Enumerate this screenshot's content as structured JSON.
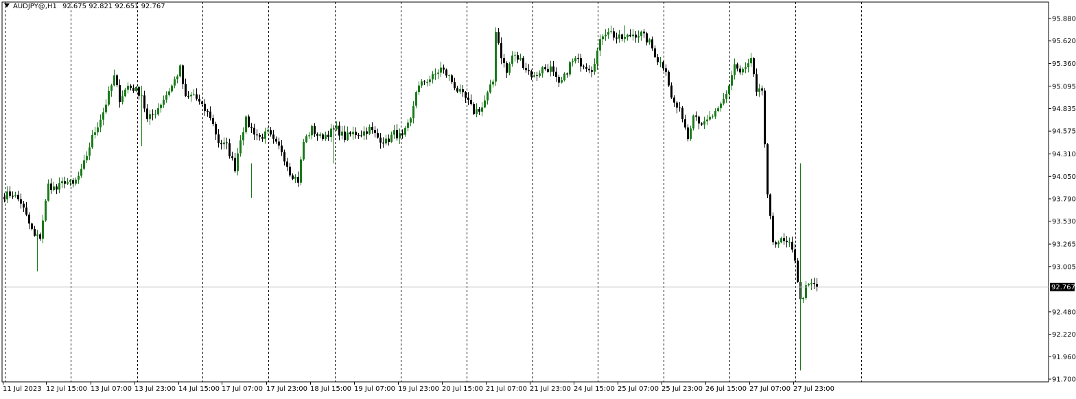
{
  "symbol": {
    "name": "AUDJPY@",
    "timeframe": "H1",
    "open": "92.675",
    "high": "92.821",
    "low": "92.651",
    "close": "92.767"
  },
  "current_price_label": "92.767",
  "colors": {
    "bull": "#1a7a1a",
    "bear": "#000000",
    "grid": "#000000",
    "price_line": "#c0c0c0",
    "background": "#ffffff"
  },
  "chart_data": {
    "type": "candlestick",
    "ylim": [
      91.7,
      95.95
    ],
    "y_ticks": [
      "95.880",
      "95.620",
      "95.360",
      "95.095",
      "94.835",
      "94.575",
      "94.310",
      "94.050",
      "93.790",
      "93.530",
      "93.265",
      "93.005",
      "92.767",
      "92.480",
      "92.220",
      "91.960",
      "91.700"
    ],
    "x_ticks": [
      "11 Jul 2023",
      "12 Jul 15:00",
      "13 Jul 07:00",
      "13 Jul 23:00",
      "14 Jul 15:00",
      "17 Jul 07:00",
      "17 Jul 23:00",
      "18 Jul 15:00",
      "19 Jul 07:00",
      "19 Jul 23:00",
      "20 Jul 15:00",
      "21 Jul 07:00",
      "21 Jul 23:00",
      "24 Jul 15:00",
      "25 Jul 07:00",
      "25 Jul 23:00",
      "26 Jul 15:00",
      "27 Jul 07:00",
      "27 Jul 23:00"
    ],
    "grid": "vertical dashed at session separators",
    "last_price": 92.767,
    "close_path": [
      [
        0,
        93.83
      ],
      [
        3,
        93.85
      ],
      [
        6,
        93.75
      ],
      [
        9,
        93.5
      ],
      [
        11,
        93.35
      ],
      [
        13,
        93.35
      ],
      [
        16,
        93.95
      ],
      [
        19,
        93.9
      ],
      [
        22,
        94.0
      ],
      [
        25,
        93.95
      ],
      [
        28,
        94.1
      ],
      [
        32,
        94.5
      ],
      [
        36,
        94.8
      ],
      [
        40,
        95.2
      ],
      [
        42,
        94.95
      ],
      [
        45,
        95.1
      ],
      [
        48,
        95.05
      ],
      [
        50,
        95.0
      ],
      [
        52,
        94.7
      ],
      [
        55,
        94.8
      ],
      [
        58,
        94.95
      ],
      [
        61,
        95.1
      ],
      [
        64,
        95.3
      ],
      [
        66,
        94.95
      ],
      [
        69,
        95.0
      ],
      [
        72,
        94.85
      ],
      [
        75,
        94.75
      ],
      [
        78,
        94.45
      ],
      [
        81,
        94.4
      ],
      [
        84,
        94.15
      ],
      [
        86,
        94.5
      ],
      [
        88,
        94.7
      ],
      [
        90,
        94.6
      ],
      [
        93,
        94.5
      ],
      [
        96,
        94.55
      ],
      [
        98,
        94.45
      ],
      [
        101,
        94.35
      ],
      [
        104,
        94.1
      ],
      [
        107,
        94.0
      ],
      [
        109,
        94.45
      ],
      [
        112,
        94.6
      ],
      [
        115,
        94.5
      ],
      [
        118,
        94.55
      ],
      [
        121,
        94.6
      ],
      [
        124,
        94.5
      ],
      [
        127,
        94.55
      ],
      [
        130,
        94.55
      ],
      [
        133,
        94.6
      ],
      [
        136,
        94.5
      ],
      [
        139,
        94.45
      ],
      [
        142,
        94.55
      ],
      [
        145,
        94.5
      ],
      [
        148,
        94.7
      ],
      [
        150,
        95.05
      ],
      [
        153,
        95.15
      ],
      [
        156,
        95.2
      ],
      [
        159,
        95.3
      ],
      [
        162,
        95.2
      ],
      [
        165,
        95.05
      ],
      [
        168,
        94.95
      ],
      [
        171,
        94.8
      ],
      [
        174,
        94.85
      ],
      [
        176,
        95.0
      ],
      [
        178,
        95.15
      ],
      [
        179,
        95.75
      ],
      [
        181,
        95.45
      ],
      [
        183,
        95.25
      ],
      [
        185,
        95.45
      ],
      [
        188,
        95.4
      ],
      [
        190,
        95.3
      ],
      [
        193,
        95.2
      ],
      [
        196,
        95.3
      ],
      [
        199,
        95.3
      ],
      [
        202,
        95.1
      ],
      [
        204,
        95.2
      ],
      [
        206,
        95.35
      ],
      [
        208,
        95.4
      ],
      [
        211,
        95.35
      ],
      [
        214,
        95.3
      ],
      [
        216,
        95.5
      ],
      [
        218,
        95.7
      ],
      [
        220,
        95.75
      ],
      [
        223,
        95.65
      ],
      [
        226,
        95.65
      ],
      [
        229,
        95.7
      ],
      [
        232,
        95.7
      ],
      [
        235,
        95.6
      ],
      [
        238,
        95.4
      ],
      [
        241,
        95.3
      ],
      [
        243,
        94.95
      ],
      [
        245,
        94.85
      ],
      [
        247,
        94.75
      ],
      [
        249,
        94.5
      ],
      [
        251,
        94.8
      ],
      [
        253,
        94.7
      ],
      [
        255,
        94.65
      ],
      [
        258,
        94.75
      ],
      [
        260,
        94.8
      ],
      [
        263,
        95.0
      ],
      [
        266,
        95.35
      ],
      [
        268,
        95.25
      ],
      [
        270,
        95.3
      ],
      [
        272,
        95.4
      ],
      [
        274,
        95.0
      ],
      [
        276,
        95.05
      ],
      [
        278,
        93.8
      ],
      [
        280,
        93.3
      ],
      [
        283,
        93.3
      ],
      [
        286,
        93.25
      ],
      [
        288,
        93.1
      ],
      [
        290,
        92.6
      ],
      [
        292,
        92.75
      ],
      [
        294,
        92.8
      ],
      [
        296,
        92.77
      ]
    ],
    "spikes": [
      [
        12,
        92.95,
        93.4
      ],
      [
        50,
        94.4,
        95.1
      ],
      [
        90,
        93.8,
        94.2
      ],
      [
        120,
        94.2,
        94.6
      ],
      [
        226,
        95.8,
        95.6
      ],
      [
        290,
        92.4,
        94.2
      ],
      [
        290,
        91.8,
        92.6
      ]
    ]
  }
}
